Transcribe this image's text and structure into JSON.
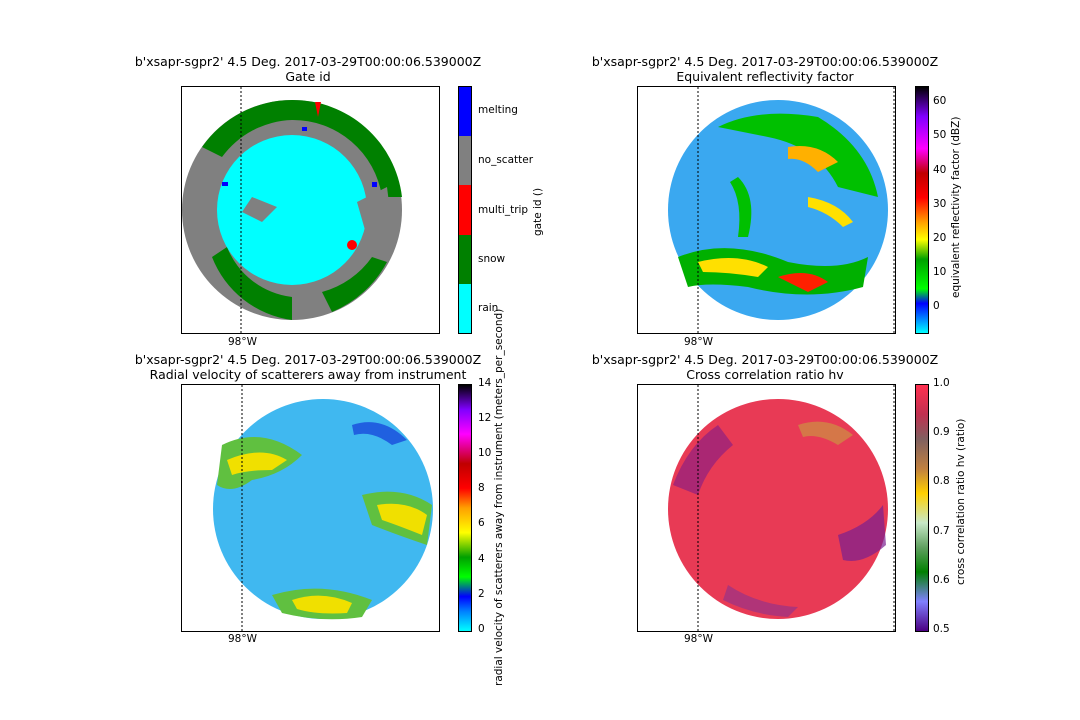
{
  "chart_data": [
    {
      "type": "heatmap",
      "title": "b'xsapr-sgpr2' 4.5 Deg. 2017-03-29T00:00:06.539000Z",
      "subtitle": "Gate id",
      "lon_label": "98°W",
      "colorbar": {
        "label": "gate id ()",
        "categories": [
          "rain",
          "snow",
          "multi_trip",
          "no_scatter",
          "melting"
        ],
        "colors": [
          "#00ffff",
          "#008000",
          "#ff0000",
          "#808080",
          "#0000ff"
        ]
      }
    },
    {
      "type": "heatmap",
      "title": "b'xsapr-sgpr2' 4.5 Deg. 2017-03-29T00:00:06.539000Z",
      "subtitle": "Equivalent reflectivity factor",
      "lon_label": "98°W",
      "colorbar": {
        "label": "equivalent reflectivity factor (dBZ)",
        "ticks": [
          "0",
          "10",
          "20",
          "30",
          "40",
          "50",
          "60"
        ],
        "range": [
          -8,
          64
        ],
        "colors": [
          "#00ffff",
          "#0080ff",
          "#0000ff",
          "#00ff00",
          "#00a000",
          "#ffff00",
          "#ffa000",
          "#ff0000",
          "#c00000",
          "#ff00ff",
          "#8000ff",
          "#000000"
        ]
      }
    },
    {
      "type": "heatmap",
      "title": "b'xsapr-sgpr2' 4.5 Deg. 2017-03-29T00:00:06.539000Z",
      "subtitle": "Radial velocity of scatterers away from instrument",
      "lon_label": "98°W",
      "colorbar": {
        "label": "radial velocity of scatterers away from instrument (meters_per_second)",
        "ticks": [
          "0",
          "2",
          "4",
          "6",
          "8",
          "10",
          "12",
          "14"
        ],
        "range": [
          0,
          14
        ],
        "colors": [
          "#00ffff",
          "#0080ff",
          "#0000ff",
          "#00ff00",
          "#00a000",
          "#ffff00",
          "#ffa000",
          "#ff0000",
          "#c00000",
          "#ff00ff",
          "#8000ff",
          "#000000"
        ]
      }
    },
    {
      "type": "heatmap",
      "title": "b'xsapr-sgpr2' 4.5 Deg. 2017-03-29T00:00:06.539000Z",
      "subtitle": "Cross correlation ratio hv",
      "lon_label": "98°W",
      "colorbar": {
        "label": "cross correlation ratio hv (ratio)",
        "ticks": [
          "0.5",
          "0.6",
          "0.7",
          "0.8",
          "0.9",
          "1.0"
        ],
        "range": [
          0.5,
          1.0
        ],
        "colors": [
          "#4b0082",
          "#8080ff",
          "#008000",
          "#c8e8c8",
          "#ffd000",
          "#c08040",
          "#806060",
          "#ff3050"
        ]
      }
    }
  ]
}
